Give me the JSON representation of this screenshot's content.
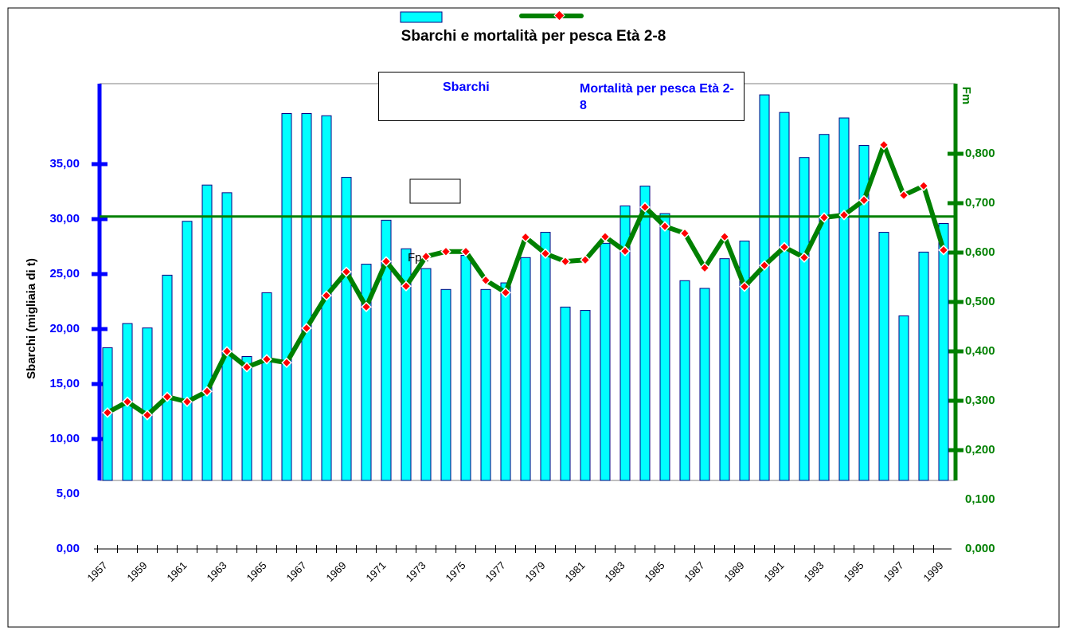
{
  "chart_data": {
    "type": "bar-line",
    "title": "Sbarchi e mortalità per pesca Età 2-8",
    "y_label": "Sbarchi (migliaia di t)",
    "y2_label": "Fm",
    "categories": [
      "1957",
      null,
      "1959",
      null,
      "1961",
      null,
      "1963",
      null,
      "1965",
      null,
      "1967",
      null,
      "1969",
      null,
      "1971",
      null,
      "1973",
      null,
      "1975",
      null,
      "1977",
      null,
      "1979",
      null,
      "1981",
      null,
      "1983",
      null,
      "1985",
      null,
      "1987",
      null,
      "1989",
      null,
      "1991",
      null,
      "1993",
      null,
      "1995",
      null,
      "1997",
      null,
      "1999"
    ],
    "series": [
      {
        "name": "Sbarchi",
        "color": "#00ffff",
        "type": "bar",
        "values": [
          18.3,
          20.5,
          20.1,
          24.9,
          29.8,
          33.1,
          32.4,
          17.5,
          23.3,
          39.6,
          39.6,
          39.4,
          33.8,
          25.9,
          29.9,
          27.3,
          25.5,
          23.6,
          26.7,
          23.6,
          24.2,
          26.5,
          28.8,
          22.0,
          21.7,
          27.8,
          31.2,
          33.0,
          30.5,
          24.4,
          23.7,
          26.4,
          28.0,
          41.3,
          39.7,
          35.6,
          37.7,
          39.2,
          36.7,
          28.8,
          21.2,
          27.0,
          29.6
        ]
      },
      {
        "name": "Mortalità per pesca Età 2-8",
        "color": "#008000",
        "marker_color": "#ff0000",
        "type": "line",
        "axis": "y2",
        "values": [
          0.276,
          0.298,
          0.271,
          0.308,
          0.298,
          0.319,
          0.4,
          0.368,
          0.384,
          0.377,
          0.447,
          0.513,
          0.561,
          0.49,
          0.582,
          0.532,
          0.592,
          0.602,
          0.602,
          0.544,
          0.519,
          0.631,
          0.598,
          0.582,
          0.585,
          0.632,
          0.603,
          0.692,
          0.653,
          0.639,
          0.569,
          0.632,
          0.531,
          0.574,
          0.611,
          0.59,
          0.671,
          0.676,
          0.706,
          0.818,
          0.716,
          0.735,
          0.605
        ]
      }
    ],
    "reference_line": {
      "label": "Fpa",
      "value": 0.673,
      "axis": "y2",
      "color": "#008000"
    },
    "ylim": [
      0,
      40
    ],
    "yticks": [
      {
        "value": 0,
        "label": "0,00"
      },
      {
        "value": 5,
        "label": "5,00"
      },
      {
        "value": 10,
        "label": "10,00"
      },
      {
        "value": 15,
        "label": "15,00"
      },
      {
        "value": 20,
        "label": "20,00"
      },
      {
        "value": 25,
        "label": "25,00"
      },
      {
        "value": 30,
        "label": "30,00"
      },
      {
        "value": 35,
        "label": "35,00"
      }
    ],
    "y2lim": [
      0,
      0.8
    ],
    "y2ticks": [
      {
        "value": 0,
        "label": "0,000"
      },
      {
        "value": 0.1,
        "label": "0,100"
      },
      {
        "value": 0.2,
        "label": "0,200"
      },
      {
        "value": 0.3,
        "label": "0,300"
      },
      {
        "value": 0.4,
        "label": "0,400"
      },
      {
        "value": 0.5,
        "label": "0,500"
      },
      {
        "value": 0.6,
        "label": "0,600"
      },
      {
        "value": 0.7,
        "label": "0,700"
      },
      {
        "value": 0.8,
        "label": "0,800"
      }
    ]
  }
}
